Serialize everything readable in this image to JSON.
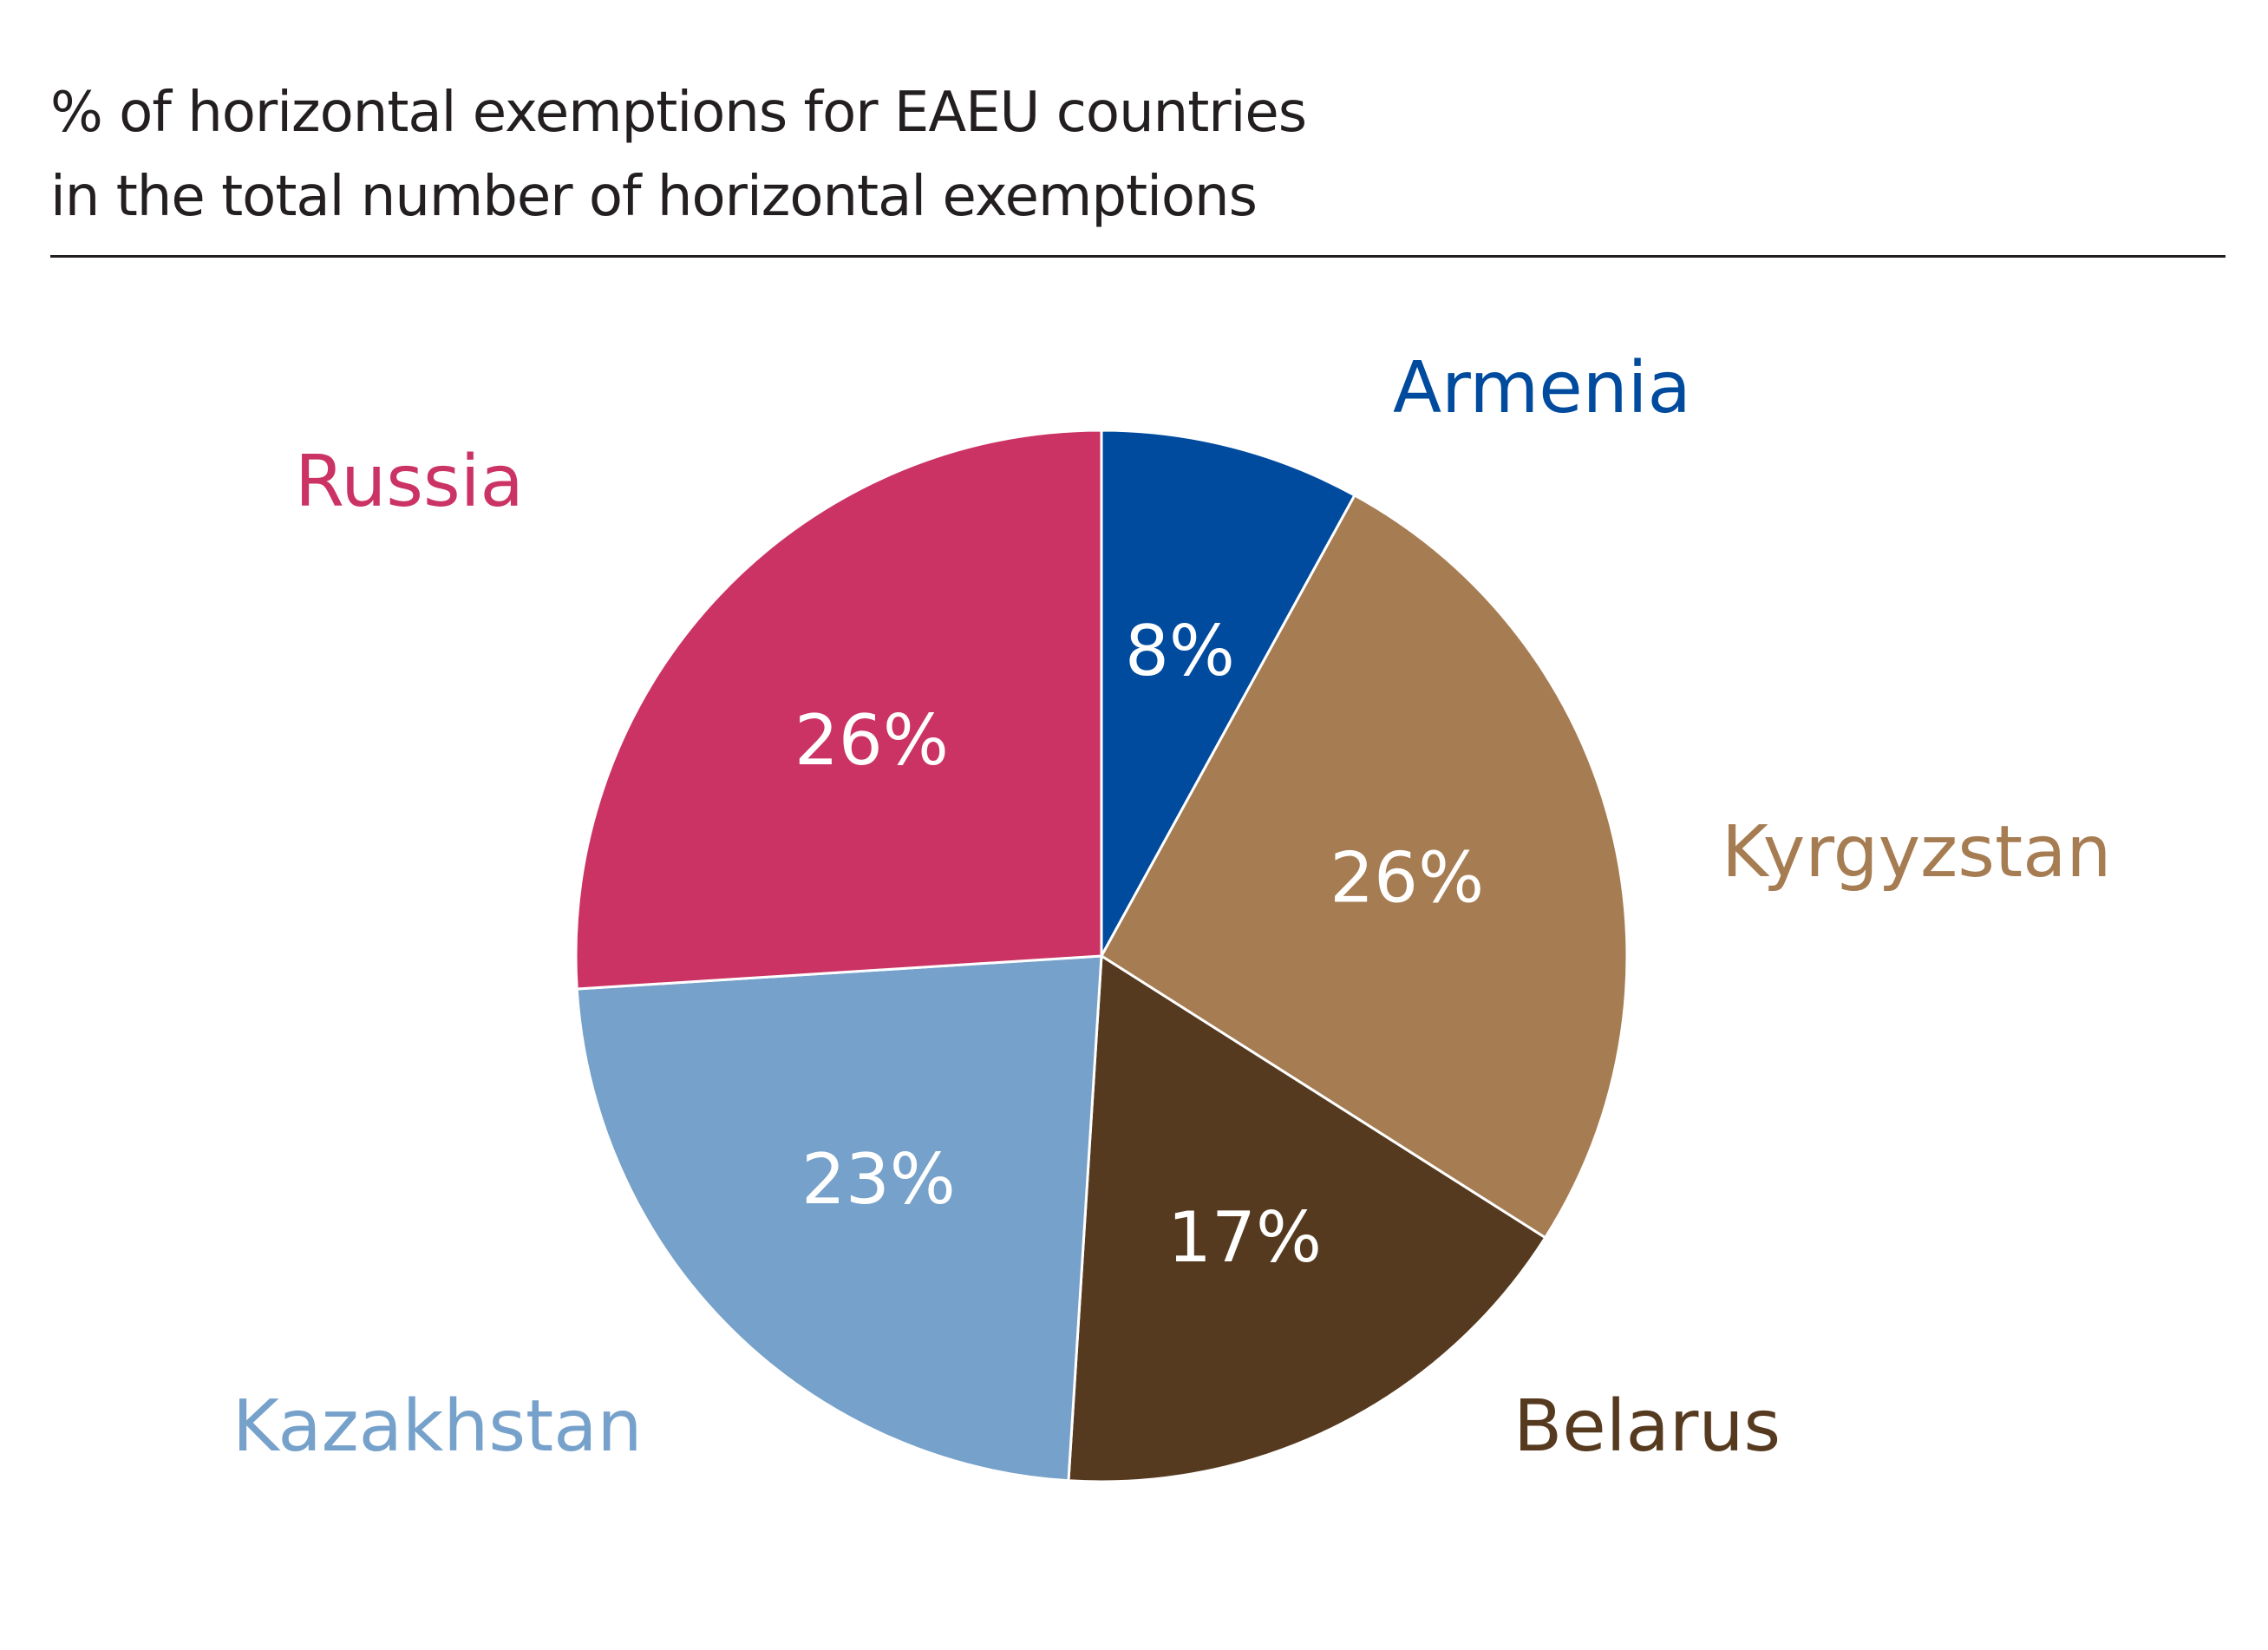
{
  "header": {
    "title_line1": "% of horizontal exemptions for EAEU countries",
    "title_line2": "in the total number of horizontal exemptions"
  },
  "chart_data": {
    "type": "pie",
    "title": "% of horizontal exemptions for EAEU countries in the total number of horizontal exemptions",
    "unit": "%",
    "slices": [
      {
        "name": "Armenia",
        "value": 8,
        "label": "8%",
        "color": "#004b9e"
      },
      {
        "name": "Kyrgyzstan",
        "value": 26,
        "label": "26%",
        "color": "#a67c52"
      },
      {
        "name": "Belarus",
        "value": 17,
        "label": "17%",
        "color": "#563a1f"
      },
      {
        "name": "Kazakhstan",
        "value": 23,
        "label": "23%",
        "color": "#76a1ca"
      },
      {
        "name": "Russia",
        "value": 26,
        "label": "26%",
        "color": "#cb3365"
      }
    ],
    "start": "12 o'clock",
    "direction": "clockwise",
    "legend": "none"
  }
}
